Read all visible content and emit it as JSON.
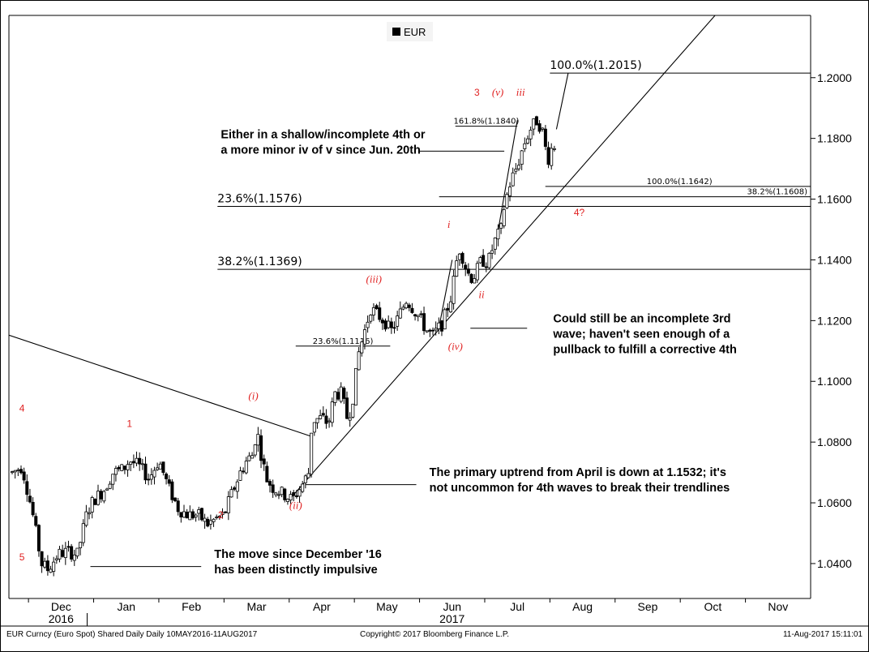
{
  "legend": {
    "label": "EUR"
  },
  "footer": {
    "left": "EUR Curncy (Euro Spot) Shared Daily  Daily 10MAY2016-11AUG2017",
    "center": "Copyright© 2017 Bloomberg Finance L.P.",
    "right": "11-Aug-2017 15:11:01"
  },
  "x_axis": {
    "months": [
      {
        "label": "Dec",
        "t": 0
      },
      {
        "label": "Jan",
        "t": 1
      },
      {
        "label": "Feb",
        "t": 2
      },
      {
        "label": "Mar",
        "t": 3
      },
      {
        "label": "Apr",
        "t": 4
      },
      {
        "label": "May",
        "t": 5
      },
      {
        "label": "Jun",
        "t": 6
      },
      {
        "label": "Jul",
        "t": 7
      },
      {
        "label": "Aug",
        "t": 8
      },
      {
        "label": "Sep",
        "t": 9
      },
      {
        "label": "Oct",
        "t": 10
      },
      {
        "label": "Nov",
        "t": 11
      }
    ],
    "years": [
      {
        "label": "2016",
        "t": 0
      },
      {
        "label": "2017",
        "t": 6
      }
    ]
  },
  "chart_data": {
    "type": "candlestick",
    "series_name": "EUR",
    "x_unit": "months since Dec 1 2016",
    "xlim": [
      -0.3,
      12.0
    ],
    "ylim": [
      1.0285,
      1.2205
    ],
    "y_ticks": [
      1.04,
      1.06,
      1.08,
      1.1,
      1.12,
      1.14,
      1.16,
      1.18,
      1.2
    ],
    "y_tick_labels": [
      "1.0400",
      "1.0600",
      "1.0800",
      "1.1000",
      "1.1200",
      "1.1400",
      "1.1600",
      "1.1800",
      "1.2000"
    ],
    "price_anchors": [
      [
        -0.25,
        1.07
      ],
      [
        -0.1,
        1.072
      ],
      [
        0.05,
        1.058
      ],
      [
        0.2,
        1.04
      ],
      [
        0.3,
        1.038
      ],
      [
        0.45,
        1.043
      ],
      [
        0.6,
        1.044
      ],
      [
        0.75,
        1.043
      ],
      [
        0.9,
        1.057
      ],
      [
        1.0,
        1.061
      ],
      [
        1.15,
        1.064
      ],
      [
        1.3,
        1.07
      ],
      [
        1.45,
        1.071
      ],
      [
        1.55,
        1.074
      ],
      [
        1.7,
        1.072
      ],
      [
        1.85,
        1.068
      ],
      [
        2.0,
        1.074
      ],
      [
        2.15,
        1.065
      ],
      [
        2.3,
        1.058
      ],
      [
        2.45,
        1.056
      ],
      [
        2.6,
        1.056
      ],
      [
        2.75,
        1.053
      ],
      [
        2.9,
        1.055
      ],
      [
        3.0,
        1.056
      ],
      [
        3.1,
        1.062
      ],
      [
        3.25,
        1.07
      ],
      [
        3.35,
        1.074
      ],
      [
        3.45,
        1.076
      ],
      [
        3.5,
        1.085
      ],
      [
        3.55,
        1.078
      ],
      [
        3.65,
        1.068
      ],
      [
        3.75,
        1.065
      ],
      [
        3.9,
        1.063
      ],
      [
        4.05,
        1.061
      ],
      [
        4.2,
        1.066
      ],
      [
        4.3,
        1.07
      ],
      [
        4.35,
        1.087
      ],
      [
        4.5,
        1.088
      ],
      [
        4.6,
        1.086
      ],
      [
        4.7,
        1.096
      ],
      [
        4.8,
        1.096
      ],
      [
        4.9,
        1.087
      ],
      [
        5.0,
        1.097
      ],
      [
        5.05,
        1.108
      ],
      [
        5.15,
        1.116
      ],
      [
        5.25,
        1.124
      ],
      [
        5.4,
        1.121
      ],
      [
        5.5,
        1.119
      ],
      [
        5.55,
        1.116
      ],
      [
        5.65,
        1.12
      ],
      [
        5.8,
        1.127
      ],
      [
        6.0,
        1.121
      ],
      [
        6.1,
        1.117
      ],
      [
        6.2,
        1.115
      ],
      [
        6.35,
        1.119
      ],
      [
        6.5,
        1.129
      ],
      [
        6.55,
        1.138
      ],
      [
        6.62,
        1.144
      ],
      [
        6.7,
        1.138
      ],
      [
        6.78,
        1.134
      ],
      [
        6.85,
        1.135
      ],
      [
        6.95,
        1.14
      ],
      [
        7.05,
        1.139
      ],
      [
        7.15,
        1.146
      ],
      [
        7.25,
        1.15
      ],
      [
        7.3,
        1.158
      ],
      [
        7.4,
        1.166
      ],
      [
        7.5,
        1.171
      ],
      [
        7.6,
        1.178
      ],
      [
        7.7,
        1.183
      ],
      [
        7.8,
        1.186
      ],
      [
        7.88,
        1.183
      ],
      [
        7.93,
        1.177
      ],
      [
        7.97,
        1.173
      ],
      [
        8.03,
        1.177
      ],
      [
        8.08,
        1.178
      ]
    ],
    "levels": [
      {
        "label": "100.0%(1.2015)",
        "y": 1.2015,
        "x0": 8.0,
        "x1": 12.0,
        "size": "large"
      },
      {
        "label": "23.6%(1.1576)",
        "y": 1.1576,
        "x0": 2.9,
        "x1": 12.0,
        "size": "large"
      },
      {
        "label": "38.2%(1.1369)",
        "y": 1.1369,
        "x0": 2.9,
        "x1": 12.0,
        "size": "large"
      },
      {
        "label": "161.8%(1.1840)",
        "y": 1.184,
        "x0": 6.55,
        "x1": 7.5,
        "size": "small"
      },
      {
        "label": "100.0%(1.1642)",
        "y": 1.1642,
        "x0": 7.93,
        "x1": 12.0,
        "size": "small"
      },
      {
        "label": "38.2%(1.1608)",
        "y": 1.1608,
        "x0": 6.3,
        "x1": 12.0,
        "size": "small"
      },
      {
        "label": "23.6%(1.1116)",
        "y": 1.1116,
        "x0": 4.1,
        "x1": 5.55,
        "size": "small"
      }
    ],
    "trendlines": [
      {
        "name": "descending resistance",
        "points": [
          [
            -0.3,
            1.1152
          ],
          [
            4.35,
            1.0818
          ]
        ]
      },
      {
        "name": "primary uptrend from April",
        "points": [
          [
            4.0,
            1.061
          ],
          [
            10.8,
            1.227
          ]
        ]
      },
      {
        "name": "wave iii projection",
        "points": [
          [
            6.3,
            1.118
          ],
          [
            6.5,
            1.14
          ]
        ]
      },
      {
        "name": "wave v projection",
        "points": [
          [
            7.2,
            1.149
          ],
          [
            7.5,
            1.186
          ]
        ]
      },
      {
        "name": "projection to 1.2015",
        "points": [
          [
            8.1,
            1.183
          ],
          [
            8.28,
            1.2015
          ]
        ]
      }
    ],
    "wave_labels": [
      {
        "text": "4",
        "x": -0.1,
        "y": 1.09,
        "style": "normal"
      },
      {
        "text": "5",
        "x": -0.1,
        "y": 1.041,
        "style": "normal"
      },
      {
        "text": "1",
        "x": 1.55,
        "y": 1.085,
        "style": "normal"
      },
      {
        "text": "2",
        "x": 2.95,
        "y": 1.055,
        "style": "normal"
      },
      {
        "text": "(i)",
        "x": 3.45,
        "y": 1.094,
        "style": "italic"
      },
      {
        "text": "(ii)",
        "x": 4.1,
        "y": 1.058,
        "style": "italic"
      },
      {
        "text": "(iii)",
        "x": 5.3,
        "y": 1.1325,
        "style": "italic"
      },
      {
        "text": "(iv)",
        "x": 6.55,
        "y": 1.1103,
        "style": "italic"
      },
      {
        "text": "i",
        "x": 6.45,
        "y": 1.1505,
        "style": "italic"
      },
      {
        "text": "ii",
        "x": 6.95,
        "y": 1.1275,
        "style": "italic"
      },
      {
        "text": "iii",
        "x": 7.55,
        "y": 1.194,
        "style": "italic"
      },
      {
        "text": "(v)",
        "x": 7.2,
        "y": 1.194,
        "style": "italic"
      },
      {
        "text": "3",
        "x": 6.88,
        "y": 1.194,
        "style": "normal"
      },
      {
        "text": "4?",
        "x": 8.45,
        "y": 1.1545,
        "style": "normal"
      }
    ],
    "annotations": [
      {
        "lines": [
          "Either in a shallow/incomplete 4th or",
          "a more minor iv of v since Jun. 20th"
        ],
        "x": 2.95,
        "y": 1.18,
        "leader": [
          [
            6.0,
            1.1758
          ],
          [
            7.3,
            1.1758
          ]
        ]
      },
      {
        "lines": [
          "Could still be an incomplete 3rd",
          "wave; haven't seen enough of a",
          "pullback to fulfill a corrective 4th"
        ],
        "x": 8.05,
        "y": 1.1194,
        "leader": [
          [
            6.78,
            1.1175
          ],
          [
            7.65,
            1.1175
          ]
        ]
      },
      {
        "lines": [
          "The primary uptrend from April is down at 1.1532; it's",
          "not uncommon for 4th waves to break their trendlines"
        ],
        "x": 6.15,
        "y": 1.0688,
        "leader": [
          [
            4.25,
            1.066
          ],
          [
            5.95,
            1.066
          ]
        ]
      },
      {
        "lines": [
          "The move since December '16",
          "has been distinctly impulsive"
        ],
        "x": 2.85,
        "y": 1.0418,
        "leader": [
          [
            0.95,
            1.039
          ],
          [
            2.65,
            1.039
          ]
        ]
      }
    ]
  }
}
